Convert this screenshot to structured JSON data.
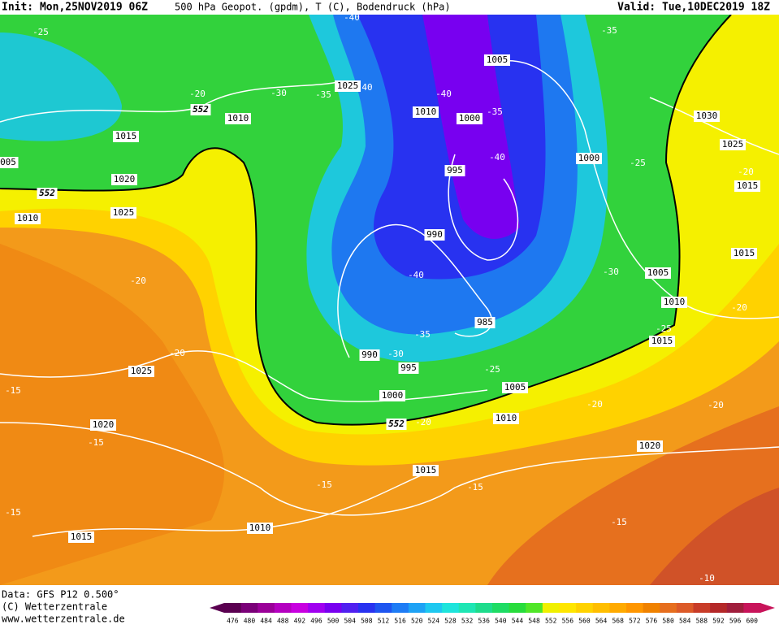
{
  "header": {
    "init": "Init: Mon,25NOV2019 06Z",
    "fields": "500 hPa Geopot. (gpdm), T (C), Bodendruck (hPa)",
    "valid": "Valid: Tue,10DEC2019 18Z"
  },
  "footer": {
    "data": "Data: GFS P12 0.500°",
    "copyright": "(C) Wetterzentrale",
    "url": "www.wetterzentrale.de"
  },
  "map": {
    "isobar_labels": [
      "1005",
      "1025",
      "1010",
      "1000",
      "1010",
      "1015",
      "1030",
      "1025",
      "1000",
      "995",
      "1020",
      "1015",
      "1010",
      "1025",
      "990",
      "1015",
      "1005",
      "1010",
      "985",
      "1015",
      "990",
      "995",
      "1025",
      "1005",
      "1000",
      "1010",
      "1020",
      "1020",
      "1015",
      "1010",
      "1015",
      "005"
    ],
    "temperature_labels": [
      "-25",
      "-40",
      "-35",
      "-20",
      "-30",
      "-35",
      "40",
      "-40",
      "-35",
      "-40",
      "-25",
      "-20",
      "-20",
      "-40",
      "-30",
      "-35",
      "-30",
      "-25",
      "-20",
      "-25",
      "-20",
      "-15",
      "-20",
      "-20",
      "-20",
      "-15",
      "-15",
      "-15",
      "-15",
      "-15",
      "-10"
    ],
    "height_labels": [
      "552",
      "552",
      "552"
    ]
  },
  "scale": {
    "labels": [
      476,
      480,
      484,
      488,
      492,
      496,
      500,
      504,
      508,
      512,
      516,
      520,
      524,
      528,
      532,
      536,
      540,
      544,
      548,
      552,
      556,
      560,
      564,
      568,
      572,
      576,
      580,
      584,
      588,
      592,
      596,
      600
    ],
    "colors": [
      "#5a0050",
      "#7a0078",
      "#9a0098",
      "#b400c0",
      "#c800e0",
      "#a000f0",
      "#7800f0",
      "#5020f0",
      "#2832f0",
      "#1e55f0",
      "#1e7cf5",
      "#1ea2f5",
      "#1ec8f0",
      "#1ee4dc",
      "#1ee6b4",
      "#1edc8c",
      "#1edc64",
      "#28dc3c",
      "#50e628",
      "#f0f000",
      "#ffe600",
      "#ffd200",
      "#ffbe00",
      "#ffaa00",
      "#ff9600",
      "#f08200",
      "#e66e1e",
      "#dc5a28",
      "#c83c28",
      "#b42828",
      "#a01e3c",
      "#c8145a"
    ]
  }
}
